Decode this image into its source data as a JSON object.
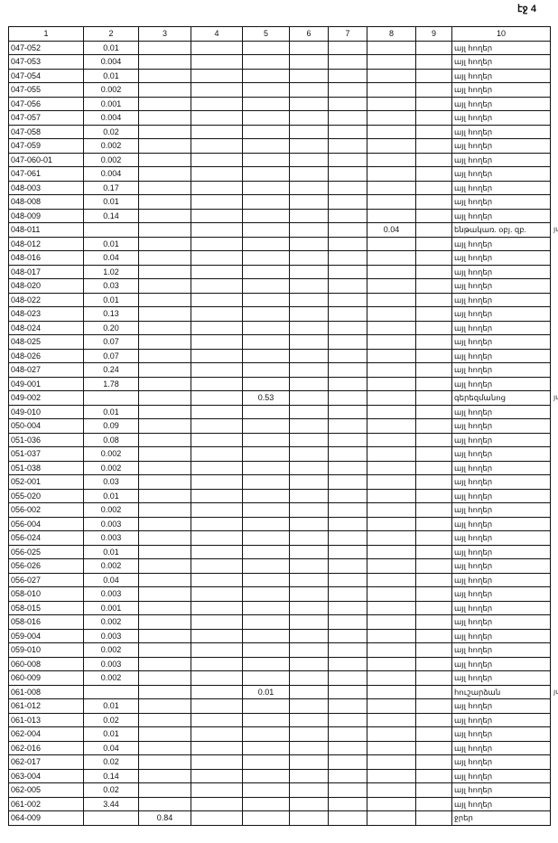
{
  "page_label": "էջ 4",
  "columns": [
    "1",
    "2",
    "3",
    "4",
    "5",
    "6",
    "7",
    "8",
    "9",
    "10"
  ],
  "rows": [
    [
      "047-052",
      "0.01",
      "",
      "",
      "",
      "",
      "",
      "",
      "",
      "այլ հողեր",
      ""
    ],
    [
      "047-053",
      "0.004",
      "",
      "",
      "",
      "",
      "",
      "",
      "",
      "այլ հողեր",
      ""
    ],
    [
      "047-054",
      "0.01",
      "",
      "",
      "",
      "",
      "",
      "",
      "",
      "այլ հողեր",
      ""
    ],
    [
      "047-055",
      "0.002",
      "",
      "",
      "",
      "",
      "",
      "",
      "",
      "այլ հողեր",
      ""
    ],
    [
      "047-056",
      "0.001",
      "",
      "",
      "",
      "",
      "",
      "",
      "",
      "այլ հողեր",
      ""
    ],
    [
      "047-057",
      "0.004",
      "",
      "",
      "",
      "",
      "",
      "",
      "",
      "այլ հողեր",
      ""
    ],
    [
      "047-058",
      "0.02",
      "",
      "",
      "",
      "",
      "",
      "",
      "",
      "այլ հողեր",
      ""
    ],
    [
      "047-059",
      "0.002",
      "",
      "",
      "",
      "",
      "",
      "",
      "",
      "այլ հողեր",
      ""
    ],
    [
      "047-060-01",
      "0.002",
      "",
      "",
      "",
      "",
      "",
      "",
      "",
      "այլ հողեր",
      ""
    ],
    [
      "047-061",
      "0.004",
      "",
      "",
      "",
      "",
      "",
      "",
      "",
      "այլ հողեր",
      ""
    ],
    [
      "048-003",
      "0.17",
      "",
      "",
      "",
      "",
      "",
      "",
      "",
      "այլ հողեր",
      ""
    ],
    [
      "048-008",
      "0.01",
      "",
      "",
      "",
      "",
      "",
      "",
      "",
      "այլ հողեր",
      ""
    ],
    [
      "048-009",
      "0.14",
      "",
      "",
      "",
      "",
      "",
      "",
      "",
      "այլ հողեր",
      ""
    ],
    [
      "048-011",
      "",
      "",
      "",
      "",
      "",
      "",
      "0.04",
      "",
      "ենթակառ. օբյ. զբ.",
      "յմ"
    ],
    [
      "048-012",
      "0.01",
      "",
      "",
      "",
      "",
      "",
      "",
      "",
      "այլ հողեր",
      ""
    ],
    [
      "048-016",
      "0.04",
      "",
      "",
      "",
      "",
      "",
      "",
      "",
      "այլ հողեր",
      ""
    ],
    [
      "048-017",
      "1.02",
      "",
      "",
      "",
      "",
      "",
      "",
      "",
      "այլ հողեր",
      ""
    ],
    [
      "048-020",
      "0.03",
      "",
      "",
      "",
      "",
      "",
      "",
      "",
      "այլ հողեր",
      ""
    ],
    [
      "048-022",
      "0.01",
      "",
      "",
      "",
      "",
      "",
      "",
      "",
      "այլ հողեր",
      ""
    ],
    [
      "048-023",
      "0.13",
      "",
      "",
      "",
      "",
      "",
      "",
      "",
      "այլ հողեր",
      ""
    ],
    [
      "048-024",
      "0.20",
      "",
      "",
      "",
      "",
      "",
      "",
      "",
      "այլ հողեր",
      ""
    ],
    [
      "048-025",
      "0.07",
      "",
      "",
      "",
      "",
      "",
      "",
      "",
      "այլ հողեր",
      ""
    ],
    [
      "048-026",
      "0.07",
      "",
      "",
      "",
      "",
      "",
      "",
      "",
      "այլ հողեր",
      ""
    ],
    [
      "048-027",
      "0.24",
      "",
      "",
      "",
      "",
      "",
      "",
      "",
      "այլ հողեր",
      ""
    ],
    [
      "049-001",
      "1.78",
      "",
      "",
      "",
      "",
      "",
      "",
      "",
      "այլ հողեր",
      ""
    ],
    [
      "049-002",
      "",
      "",
      "",
      "0.53",
      "",
      "",
      "",
      "",
      "գերեզմանոց",
      "յմ"
    ],
    [
      "049-010",
      "0.01",
      "",
      "",
      "",
      "",
      "",
      "",
      "",
      "այլ հողեր",
      ""
    ],
    [
      "050-004",
      "0.09",
      "",
      "",
      "",
      "",
      "",
      "",
      "",
      "այլ հողեր",
      ""
    ],
    [
      "051-036",
      "0.08",
      "",
      "",
      "",
      "",
      "",
      "",
      "",
      "այլ հողեր",
      ""
    ],
    [
      "051-037",
      "0.002",
      "",
      "",
      "",
      "",
      "",
      "",
      "",
      "այլ հողեր",
      ""
    ],
    [
      "051-038",
      "0.002",
      "",
      "",
      "",
      "",
      "",
      "",
      "",
      "այլ հողեր",
      ""
    ],
    [
      "052-001",
      "0.03",
      "",
      "",
      "",
      "",
      "",
      "",
      "",
      "այլ հողեր",
      ""
    ],
    [
      "055-020",
      "0.01",
      "",
      "",
      "",
      "",
      "",
      "",
      "",
      "այլ հողեր",
      ""
    ],
    [
      "056-002",
      "0.002",
      "",
      "",
      "",
      "",
      "",
      "",
      "",
      "այլ հողեր",
      ""
    ],
    [
      "056-004",
      "0.003",
      "",
      "",
      "",
      "",
      "",
      "",
      "",
      "այլ հողեր",
      ""
    ],
    [
      "056-024",
      "0.003",
      "",
      "",
      "",
      "",
      "",
      "",
      "",
      "այլ հողեր",
      ""
    ],
    [
      "056-025",
      "0.01",
      "",
      "",
      "",
      "",
      "",
      "",
      "",
      "այլ հողեր",
      ""
    ],
    [
      "056-026",
      "0.002",
      "",
      "",
      "",
      "",
      "",
      "",
      "",
      "այլ հողեր",
      ""
    ],
    [
      "056-027",
      "0.04",
      "",
      "",
      "",
      "",
      "",
      "",
      "",
      "այլ հողեր",
      ""
    ],
    [
      "058-010",
      "0.003",
      "",
      "",
      "",
      "",
      "",
      "",
      "",
      "այլ հողեր",
      ""
    ],
    [
      "058-015",
      "0.001",
      "",
      "",
      "",
      "",
      "",
      "",
      "",
      "այլ հողեր",
      ""
    ],
    [
      "058-016",
      "0.002",
      "",
      "",
      "",
      "",
      "",
      "",
      "",
      "այլ հողեր",
      ""
    ],
    [
      "059-004",
      "0.003",
      "",
      "",
      "",
      "",
      "",
      "",
      "",
      "այլ հողեր",
      ""
    ],
    [
      "059-010",
      "0.002",
      "",
      "",
      "",
      "",
      "",
      "",
      "",
      "այլ հողեր",
      ""
    ],
    [
      "060-008",
      "0.003",
      "",
      "",
      "",
      "",
      "",
      "",
      "",
      "այլ հողեր",
      ""
    ],
    [
      "060-009",
      "0.002",
      "",
      "",
      "",
      "",
      "",
      "",
      "",
      "այլ հողեր",
      ""
    ],
    [
      "061-008",
      "",
      "",
      "",
      "0.01",
      "",
      "",
      "",
      "",
      "հուշարձան",
      "յմ"
    ],
    [
      "061-012",
      "0.01",
      "",
      "",
      "",
      "",
      "",
      "",
      "",
      "այլ հողեր",
      ""
    ],
    [
      "061-013",
      "0.02",
      "",
      "",
      "",
      "",
      "",
      "",
      "",
      "այլ հողեր",
      ""
    ],
    [
      "062-004",
      "0.01",
      "",
      "",
      "",
      "",
      "",
      "",
      "",
      "այլ հողեր",
      ""
    ],
    [
      "062-016",
      "0.04",
      "",
      "",
      "",
      "",
      "",
      "",
      "",
      "այլ հողեր",
      ""
    ],
    [
      "062-017",
      "0.02",
      "",
      "",
      "",
      "",
      "",
      "",
      "",
      "այլ հողեր",
      ""
    ],
    [
      "063-004",
      "0.14",
      "",
      "",
      "",
      "",
      "",
      "",
      "",
      "այլ հողեր",
      ""
    ],
    [
      "062-005",
      "0.02",
      "",
      "",
      "",
      "",
      "",
      "",
      "",
      "այլ հողեր",
      ""
    ],
    [
      "061-002",
      "3.44",
      "",
      "",
      "",
      "",
      "",
      "",
      "",
      "այլ հողեր",
      ""
    ],
    [
      "064-009",
      "",
      "0.84",
      "",
      "",
      "",
      "",
      "",
      "",
      "ջրեր",
      ""
    ]
  ]
}
